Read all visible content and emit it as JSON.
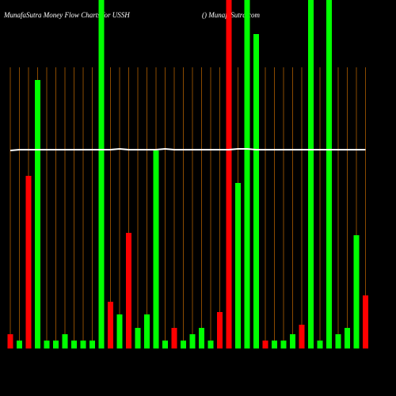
{
  "chart_data": {
    "type": "bar",
    "title": "MunafaSutra  Money Flow  Charts for USSH",
    "subtitle": "() MunafaSutra.com",
    "values": [
      18,
      10,
      218,
      339,
      10,
      10,
      18,
      10,
      10,
      10,
      440,
      59,
      43,
      146,
      26,
      43,
      250,
      10,
      26,
      10,
      18,
      26,
      10,
      46,
      440,
      209,
      440,
      397,
      10,
      10,
      10,
      18,
      30,
      440,
      10,
      440,
      18,
      26,
      143,
      67
    ],
    "colors": [
      "#ff0000",
      "#00ff00",
      "#ff0000",
      "#00ff00",
      "#00ff00",
      "#00ff00",
      "#00ff00",
      "#00ff00",
      "#00ff00",
      "#00ff00",
      "#00ff00",
      "#ff0000",
      "#00ff00",
      "#ff0000",
      "#00ff00",
      "#00ff00",
      "#00ff00",
      "#00ff00",
      "#ff0000",
      "#00ff00",
      "#00ff00",
      "#00ff00",
      "#00ff00",
      "#ff0000",
      "#ff0000",
      "#00ff00",
      "#00ff00",
      "#00ff00",
      "#ff0000",
      "#00ff00",
      "#00ff00",
      "#00ff00",
      "#ff0000",
      "#00ff00",
      "#00ff00",
      "#00ff00",
      "#00ff00",
      "#00ff00",
      "#00ff00",
      "#ff0000"
    ],
    "line": {
      "color": "#ffffff",
      "values": [
        250,
        251,
        251,
        251,
        251,
        251,
        251,
        251,
        251,
        251,
        251,
        251,
        252,
        251,
        251,
        251,
        251,
        252,
        251,
        251,
        251,
        251,
        251,
        251,
        251,
        252,
        252,
        251,
        251,
        251,
        251,
        251,
        251,
        251,
        251,
        251,
        251,
        251,
        251,
        251
      ]
    },
    "ylim": [
      0,
      440
    ],
    "grid": true,
    "grid_color": "#8a4a00"
  }
}
